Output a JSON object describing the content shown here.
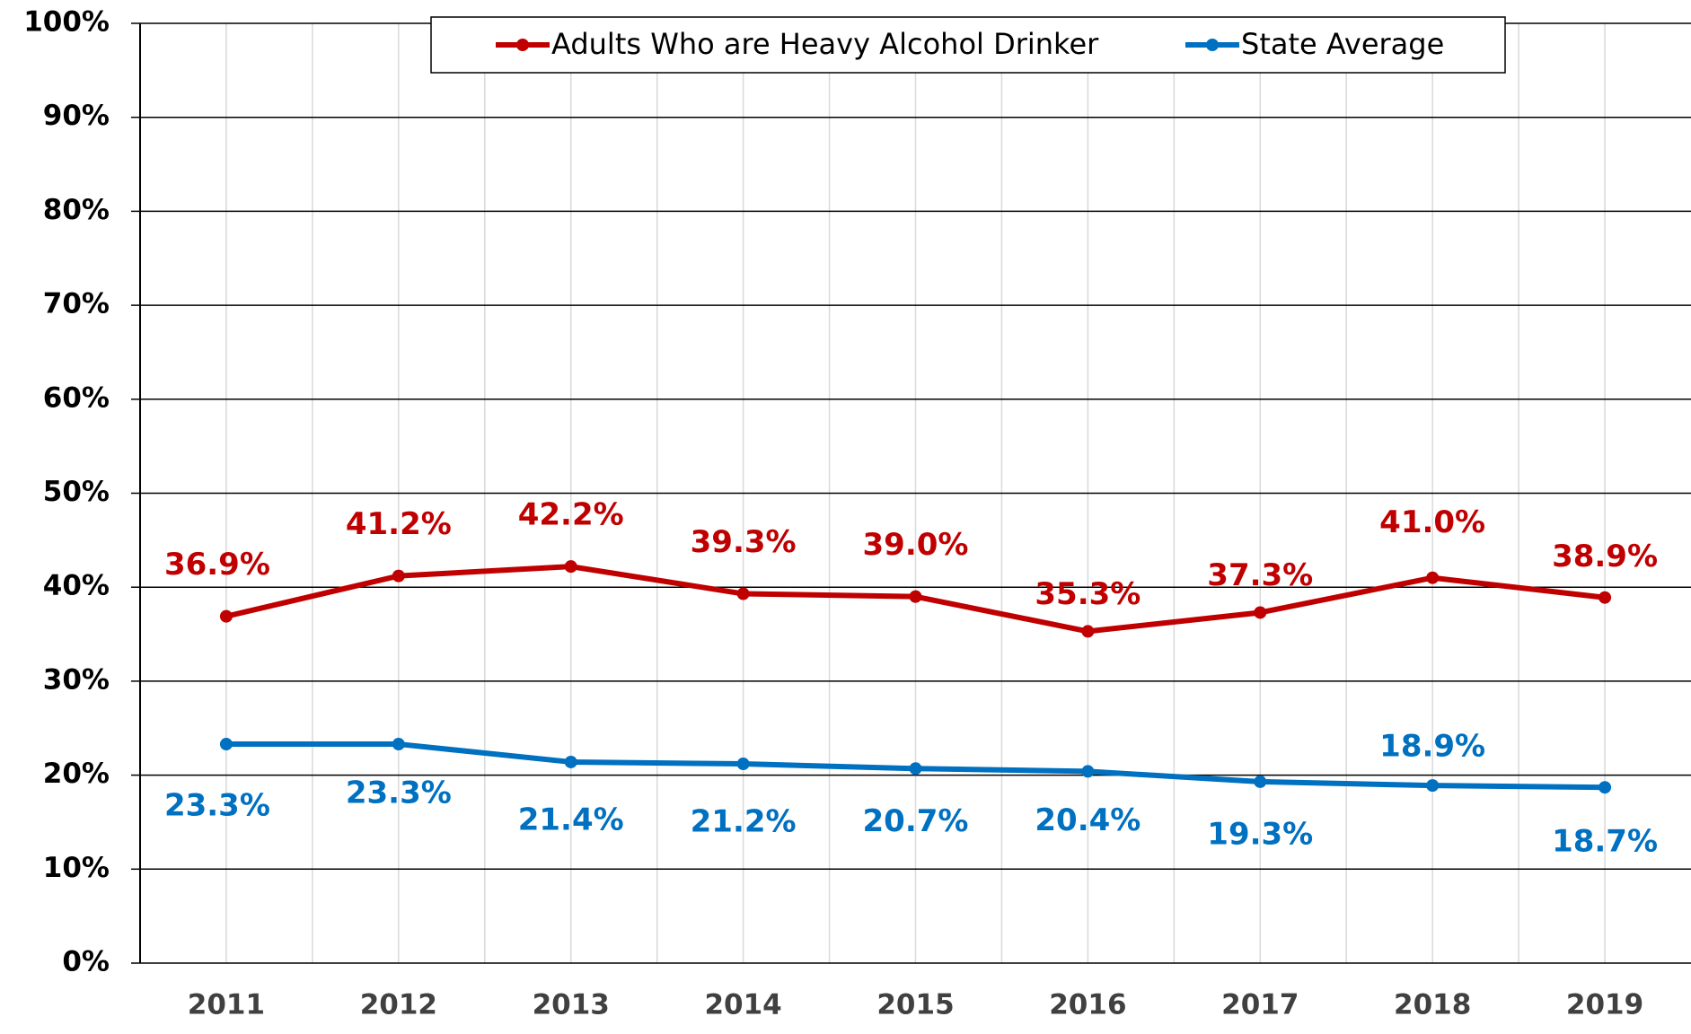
{
  "chart_data": {
    "type": "line",
    "categories": [
      "2011",
      "2012",
      "2013",
      "2014",
      "2015",
      "2016",
      "2017",
      "2018",
      "2019"
    ],
    "series": [
      {
        "name": "Adults Who are Heavy Alcohol Drinker",
        "color": "#c00000",
        "values": [
          36.9,
          41.2,
          42.2,
          39.3,
          39.0,
          35.3,
          37.3,
          41.0,
          38.9
        ],
        "value_labels": [
          "36.9%",
          "41.2%",
          "42.2%",
          "39.3%",
          "39.0%",
          "35.3%",
          "37.3%",
          "41.0%",
          "38.9%"
        ]
      },
      {
        "name": "State Average",
        "color": "#0070c0",
        "values": [
          23.3,
          23.3,
          21.4,
          21.2,
          20.7,
          20.4,
          19.3,
          18.9,
          18.7
        ],
        "value_labels": [
          "23.3%",
          "23.3%",
          "21.4%",
          "21.2%",
          "20.7%",
          "20.4%",
          "19.3%",
          "18.9%",
          "18.7%"
        ]
      }
    ],
    "ylim": [
      0,
      100
    ],
    "yticks": [
      {
        "value": 0,
        "label": "0%"
      },
      {
        "value": 10,
        "label": "10%"
      },
      {
        "value": 20,
        "label": "20%"
      },
      {
        "value": 30,
        "label": "30%"
      },
      {
        "value": 40,
        "label": "40%"
      },
      {
        "value": 50,
        "label": "50%"
      },
      {
        "value": 60,
        "label": "60%"
      },
      {
        "value": 70,
        "label": "70%"
      },
      {
        "value": 80,
        "label": "80%"
      },
      {
        "value": 90,
        "label": "90%"
      },
      {
        "value": 100,
        "label": "100%"
      }
    ],
    "grid": true,
    "legend": "top"
  }
}
